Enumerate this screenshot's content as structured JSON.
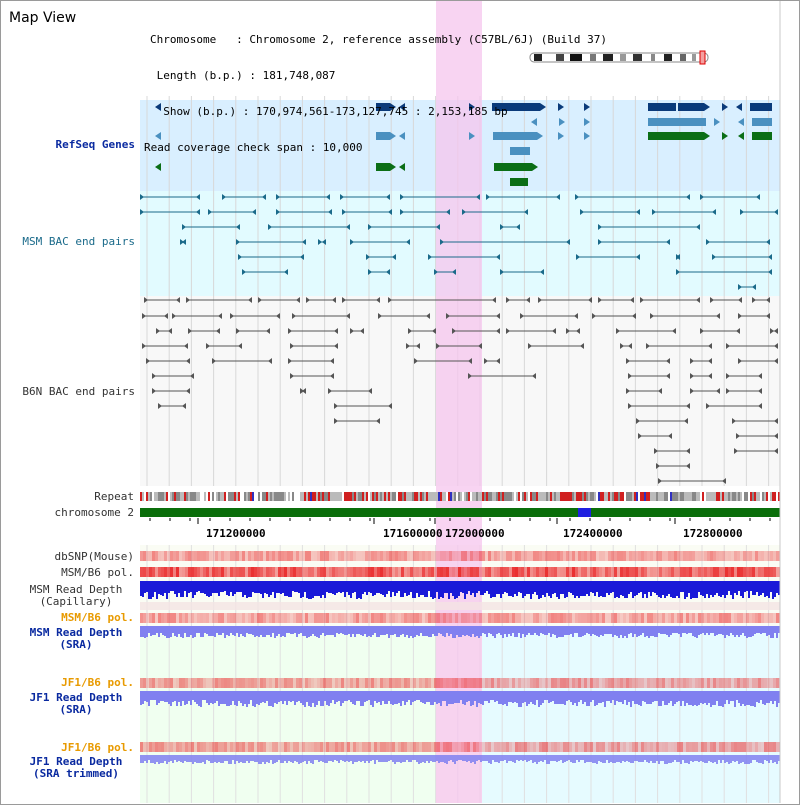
{
  "app": {
    "title": "Map View"
  },
  "info": {
    "chromosome_line": "Chromosome   : Chromosome 2, reference assembly (C57BL/6J) (Build 37)",
    "length_line": " Length (b.p.) : 181,748,087",
    "show_line": "  Show (b.p.) : 170,974,561-173,127,745 : 2,153,185 bp",
    "coverage_line": "Read coverage check span : 10,000"
  },
  "tracks": {
    "refseq": {
      "label": "RefSeq Genes",
      "color": "#0a2aa0"
    },
    "msm_bac": {
      "label": "MSM BAC end pairs",
      "color": "#1a6a8a"
    },
    "b6n_bac": {
      "label": "B6N BAC end pairs",
      "color": "#333333"
    },
    "repeat": {
      "label": "Repeat"
    },
    "chromosome": {
      "label": "chromosome 2"
    },
    "dbsnp": {
      "label": "dbSNP(Mouse)"
    },
    "msm_b6_pol_1": {
      "label": "MSM/B6 pol."
    },
    "msm_depth_cap": {
      "label": "MSM Read Depth\n(Capillary)"
    },
    "msm_b6_pol_2": {
      "label": "MSM/B6 pol.",
      "color": "#e89a00"
    },
    "msm_depth_sra": {
      "label": "MSM Read Depth\n(SRA)",
      "color": "#0a2aa0"
    },
    "jf1_b6_pol_1": {
      "label": "JF1/B6 pol.",
      "color": "#e89a00"
    },
    "jf1_depth_sra": {
      "label": "JF1 Read Depth\n(SRA)",
      "color": "#0a2aa0"
    },
    "jf1_b6_pol_2": {
      "label": "JF1/B6 pol.",
      "color": "#e89a00"
    },
    "jf1_depth_trim": {
      "label": "JF1 Read Depth\n(SRA trimmed)",
      "color": "#0a2aa0"
    }
  },
  "ruler": {
    "ticks": [
      "171200000",
      "171600000",
      "172000000",
      "172400000",
      "172800000"
    ]
  },
  "colors": {
    "highlight": "#f6c6ee",
    "refseq_bg": "#d9efff",
    "msm_bg": "#e2fbff",
    "b6n_bg": "#f8f8f8",
    "gene_dark": "#0a3a7a",
    "gene_mid": "#4a90c0",
    "gene_green": "#0b6e16",
    "chrom_green": "#0a6e0a",
    "depth_blue": "#1a1ad8",
    "depth_light": "#8080f0",
    "pol_red": "#ea3030"
  }
}
